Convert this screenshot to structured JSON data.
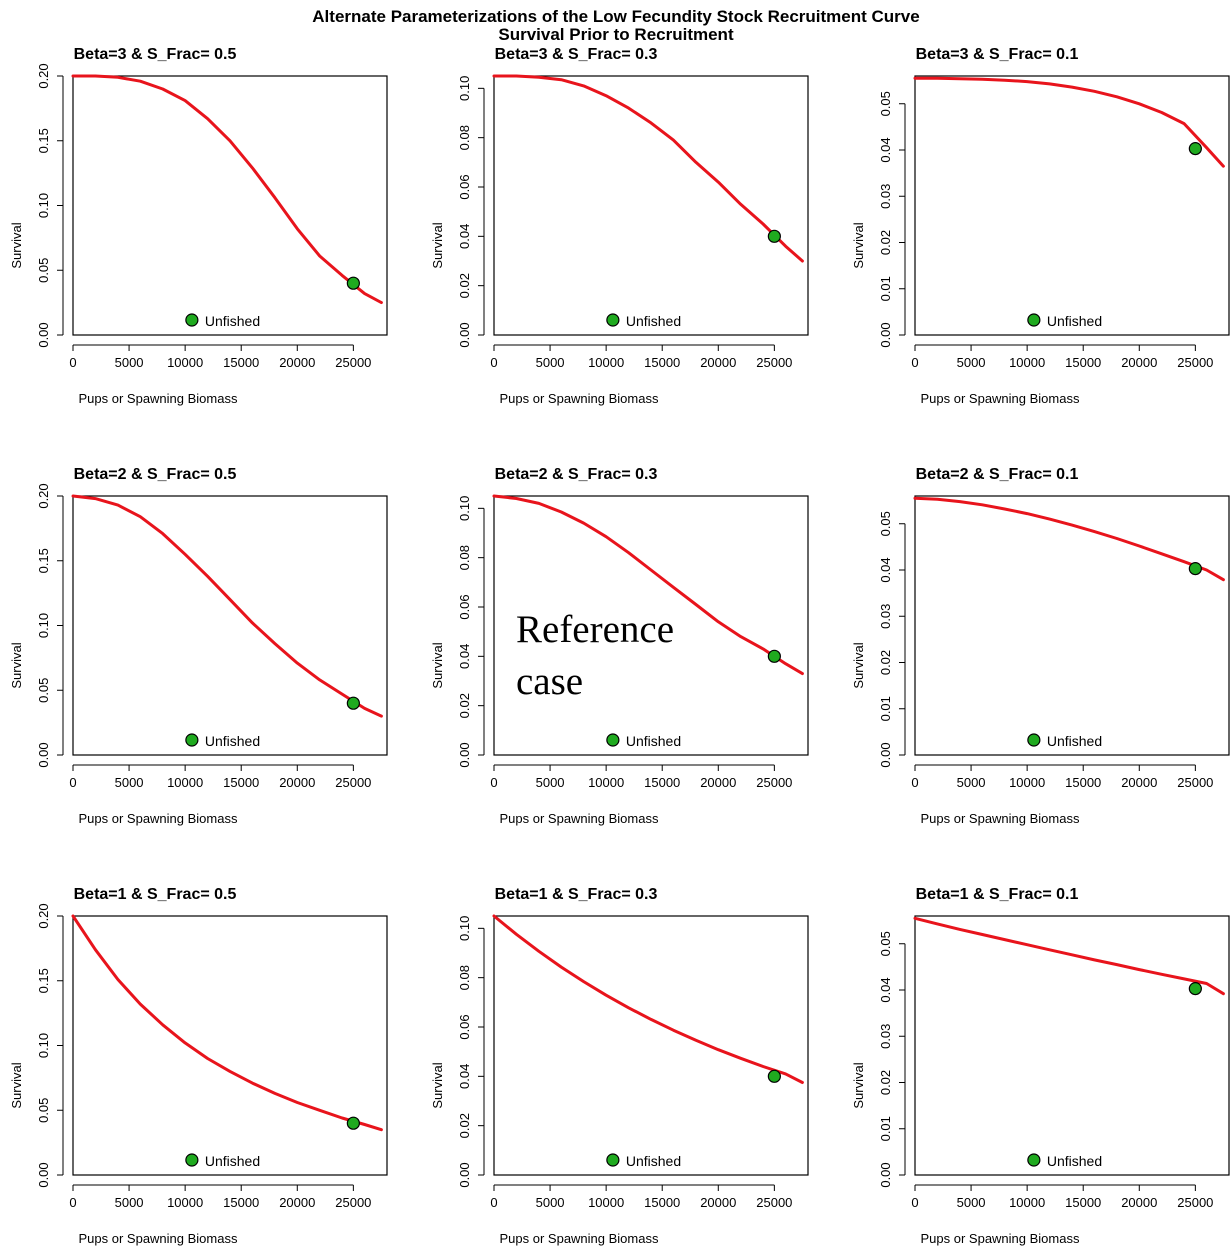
{
  "title": "Alternate Parameterizations of the Low Fecundity Stock Recruitment Curve",
  "subtitle": "Survival Prior to Recruitment",
  "annotation": [
    "Reference",
    "case"
  ],
  "chart_data": [
    {
      "type": "line",
      "title": "Beta=3 & S_Frac= 0.5",
      "xlabel": "Pups or Spawning Biomass",
      "ylabel": "Survival",
      "xlim": [
        0,
        28000
      ],
      "ylim": [
        0,
        0.2
      ],
      "xticks": [
        0,
        5000,
        10000,
        15000,
        20000,
        25000
      ],
      "yticks": [
        "0.00",
        "0.05",
        "0.10",
        "0.15",
        "0.20"
      ],
      "legend": "Unfished",
      "legend_position": "bottom-center",
      "series": [
        {
          "color": "#e8141c",
          "x": [
            0,
            2000,
            4000,
            6000,
            8000,
            10000,
            12000,
            14000,
            16000,
            18000,
            20000,
            22000,
            24000,
            26000,
            27500
          ],
          "y": [
            0.2,
            0.2,
            0.199,
            0.196,
            0.19,
            0.181,
            0.167,
            0.15,
            0.129,
            0.106,
            0.082,
            0.061,
            0.046,
            0.032,
            0.025
          ]
        }
      ],
      "points": [
        {
          "name": "Unfished",
          "x": 25000,
          "y": 0.04,
          "color": "#1faa1f"
        }
      ]
    },
    {
      "type": "line",
      "title": "Beta=3 & S_Frac= 0.3",
      "xlabel": "Pups or Spawning Biomass",
      "ylabel": "Survival",
      "xlim": [
        0,
        28000
      ],
      "ylim": [
        0,
        0.105
      ],
      "xticks": [
        0,
        5000,
        10000,
        15000,
        20000,
        25000
      ],
      "yticks": [
        "0.00",
        "0.02",
        "0.04",
        "0.06",
        "0.08",
        "0.10"
      ],
      "legend": "Unfished",
      "legend_position": "bottom-center",
      "series": [
        {
          "color": "#e8141c",
          "x": [
            0,
            2000,
            4000,
            6000,
            8000,
            10000,
            12000,
            14000,
            16000,
            18000,
            20000,
            22000,
            24000,
            26000,
            27500
          ],
          "y": [
            0.105,
            0.105,
            0.1045,
            0.1035,
            0.101,
            0.097,
            0.092,
            0.086,
            0.079,
            0.07,
            0.062,
            0.053,
            0.045,
            0.036,
            0.03
          ]
        }
      ],
      "points": [
        {
          "name": "Unfished",
          "x": 25000,
          "y": 0.04,
          "color": "#1faa1f"
        }
      ]
    },
    {
      "type": "line",
      "title": "Beta=3 & S_Frac= 0.1",
      "xlabel": "Pups or Spawning Biomass",
      "ylabel": "Survival",
      "xlim": [
        0,
        28000
      ],
      "ylim": [
        0,
        0.056
      ],
      "xticks": [
        0,
        5000,
        10000,
        15000,
        20000,
        25000
      ],
      "yticks": [
        "0.00",
        "0.01",
        "0.02",
        "0.03",
        "0.04",
        "0.05"
      ],
      "legend": "Unfished",
      "legend_position": "bottom-center",
      "series": [
        {
          "color": "#e8141c",
          "x": [
            0,
            2000,
            4000,
            6000,
            8000,
            10000,
            12000,
            14000,
            16000,
            18000,
            20000,
            22000,
            24000,
            26000,
            27500
          ],
          "y": [
            0.0555,
            0.0555,
            0.0554,
            0.0553,
            0.0551,
            0.0548,
            0.0543,
            0.0536,
            0.0527,
            0.0515,
            0.05,
            0.0481,
            0.0457,
            0.0405,
            0.0365
          ]
        }
      ],
      "points": [
        {
          "name": "Unfished",
          "x": 25000,
          "y": 0.0403,
          "color": "#1faa1f"
        }
      ]
    },
    {
      "type": "line",
      "title": "Beta=2 & S_Frac= 0.5",
      "xlabel": "Pups or Spawning Biomass",
      "ylabel": "Survival",
      "xlim": [
        0,
        28000
      ],
      "ylim": [
        0,
        0.2
      ],
      "xticks": [
        0,
        5000,
        10000,
        15000,
        20000,
        25000
      ],
      "yticks": [
        "0.00",
        "0.05",
        "0.10",
        "0.15",
        "0.20"
      ],
      "legend": "Unfished",
      "legend_position": "bottom-center",
      "series": [
        {
          "color": "#e8141c",
          "x": [
            0,
            2000,
            4000,
            6000,
            8000,
            10000,
            12000,
            14000,
            16000,
            18000,
            20000,
            22000,
            24000,
            26000,
            27500
          ],
          "y": [
            0.2,
            0.198,
            0.193,
            0.184,
            0.171,
            0.155,
            0.138,
            0.12,
            0.102,
            0.086,
            0.071,
            0.058,
            0.047,
            0.036,
            0.03
          ]
        }
      ],
      "points": [
        {
          "name": "Unfished",
          "x": 25000,
          "y": 0.04,
          "color": "#1faa1f"
        }
      ]
    },
    {
      "type": "line",
      "title": "Beta=2 & S_Frac= 0.3",
      "xlabel": "Pups or Spawning Biomass",
      "ylabel": "Survival",
      "xlim": [
        0,
        28000
      ],
      "ylim": [
        0,
        0.105
      ],
      "xticks": [
        0,
        5000,
        10000,
        15000,
        20000,
        25000
      ],
      "yticks": [
        "0.00",
        "0.02",
        "0.04",
        "0.06",
        "0.08",
        "0.10"
      ],
      "legend": "Unfished",
      "legend_position": "bottom-center",
      "series": [
        {
          "color": "#e8141c",
          "x": [
            0,
            2000,
            4000,
            6000,
            8000,
            10000,
            12000,
            14000,
            16000,
            18000,
            20000,
            22000,
            24000,
            26000,
            27500
          ],
          "y": [
            0.105,
            0.104,
            0.102,
            0.0985,
            0.094,
            0.0885,
            0.082,
            0.075,
            0.068,
            0.061,
            0.054,
            0.048,
            0.043,
            0.037,
            0.033
          ]
        }
      ],
      "points": [
        {
          "name": "Unfished",
          "x": 25000,
          "y": 0.04,
          "color": "#1faa1f"
        }
      ]
    },
    {
      "type": "line",
      "title": "Beta=2 & S_Frac= 0.1",
      "xlabel": "Pups or Spawning Biomass",
      "ylabel": "Survival",
      "xlim": [
        0,
        28000
      ],
      "ylim": [
        0,
        0.056
      ],
      "xticks": [
        0,
        5000,
        10000,
        15000,
        20000,
        25000
      ],
      "yticks": [
        "0.00",
        "0.01",
        "0.02",
        "0.03",
        "0.04",
        "0.05"
      ],
      "legend": "Unfished",
      "legend_position": "bottom-center",
      "series": [
        {
          "color": "#e8141c",
          "x": [
            0,
            2000,
            4000,
            6000,
            8000,
            10000,
            12000,
            14000,
            16000,
            18000,
            20000,
            22000,
            24000,
            26000,
            27500
          ],
          "y": [
            0.0555,
            0.0553,
            0.0548,
            0.0541,
            0.0532,
            0.0522,
            0.051,
            0.0497,
            0.0483,
            0.0468,
            0.0452,
            0.0435,
            0.0418,
            0.04,
            0.0379
          ]
        }
      ],
      "points": [
        {
          "name": "Unfished",
          "x": 25000,
          "y": 0.0403,
          "color": "#1faa1f"
        }
      ]
    },
    {
      "type": "line",
      "title": "Beta=1 & S_Frac= 0.5",
      "xlabel": "Pups or Spawning Biomass",
      "ylabel": "Survival",
      "xlim": [
        0,
        28000
      ],
      "ylim": [
        0,
        0.2
      ],
      "xticks": [
        0,
        5000,
        10000,
        15000,
        20000,
        25000
      ],
      "yticks": [
        "0.00",
        "0.05",
        "0.10",
        "0.15",
        "0.20"
      ],
      "legend": "Unfished",
      "legend_position": "bottom-center",
      "series": [
        {
          "color": "#e8141c",
          "x": [
            0,
            2000,
            4000,
            6000,
            8000,
            10000,
            12000,
            14000,
            16000,
            18000,
            20000,
            22000,
            24000,
            26000,
            27500
          ],
          "y": [
            0.2,
            0.174,
            0.151,
            0.132,
            0.116,
            0.102,
            0.09,
            0.08,
            0.071,
            0.063,
            0.056,
            0.05,
            0.044,
            0.039,
            0.035
          ]
        }
      ],
      "points": [
        {
          "name": "Unfished",
          "x": 25000,
          "y": 0.04,
          "color": "#1faa1f"
        }
      ]
    },
    {
      "type": "line",
      "title": "Beta=1 & S_Frac= 0.3",
      "xlabel": "Pups or Spawning Biomass",
      "ylabel": "Survival",
      "xlim": [
        0,
        28000
      ],
      "ylim": [
        0,
        0.105
      ],
      "xticks": [
        0,
        5000,
        10000,
        15000,
        20000,
        25000
      ],
      "yticks": [
        "0.00",
        "0.02",
        "0.04",
        "0.06",
        "0.08",
        "0.10"
      ],
      "legend": "Unfished",
      "legend_position": "bottom-center",
      "series": [
        {
          "color": "#e8141c",
          "x": [
            0,
            2000,
            4000,
            6000,
            8000,
            10000,
            12000,
            14000,
            16000,
            18000,
            20000,
            22000,
            24000,
            26000,
            27500
          ],
          "y": [
            0.105,
            0.0976,
            0.0907,
            0.0843,
            0.0784,
            0.0729,
            0.0678,
            0.0631,
            0.0587,
            0.0546,
            0.0508,
            0.0473,
            0.044,
            0.041,
            0.0375
          ]
        }
      ],
      "points": [
        {
          "name": "Unfished",
          "x": 25000,
          "y": 0.04,
          "color": "#1faa1f"
        }
      ]
    },
    {
      "type": "line",
      "title": "Beta=1 & S_Frac= 0.1",
      "xlabel": "Pups or Spawning Biomass",
      "ylabel": "Survival",
      "xlim": [
        0,
        28000
      ],
      "ylim": [
        0,
        0.056
      ],
      "xticks": [
        0,
        5000,
        10000,
        15000,
        20000,
        25000
      ],
      "yticks": [
        "0.00",
        "0.01",
        "0.02",
        "0.03",
        "0.04",
        "0.05"
      ],
      "legend": "Unfished",
      "legend_position": "bottom-center",
      "series": [
        {
          "color": "#e8141c",
          "x": [
            0,
            2000,
            4000,
            6000,
            8000,
            10000,
            12000,
            14000,
            16000,
            18000,
            20000,
            22000,
            24000,
            26000,
            27500
          ],
          "y": [
            0.0555,
            0.0543,
            0.0531,
            0.052,
            0.0509,
            0.0498,
            0.0487,
            0.0476,
            0.0465,
            0.0455,
            0.0444,
            0.0434,
            0.0424,
            0.0414,
            0.0392
          ]
        }
      ],
      "points": [
        {
          "name": "Unfished",
          "x": 25000,
          "y": 0.0403,
          "color": "#1faa1f"
        }
      ]
    }
  ]
}
